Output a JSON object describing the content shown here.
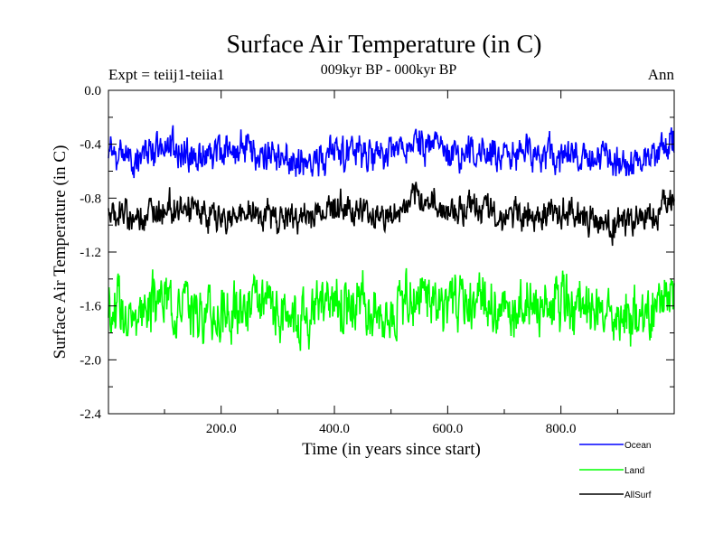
{
  "chart_data": {
    "type": "line",
    "title": "Surface Air Temperature (in C)",
    "subtitle": "009kyr BP - 000kyr BP",
    "left_label": "Expt = teiij1-teiia1",
    "right_label": "Ann",
    "xlabel": "Time (in years since start)",
    "ylabel": "Surface Air Temperature (in C)",
    "xlim": [
      1,
      1000
    ],
    "ylim": [
      -2.4,
      0.0
    ],
    "x_ticks": [
      200,
      400,
      600,
      800
    ],
    "x_tick_labels": [
      "200.0",
      "400.0",
      "600.0",
      "800.0"
    ],
    "y_ticks": [
      0.0,
      -0.4,
      -0.8,
      -1.2,
      -1.6,
      -2.0,
      -2.4
    ],
    "y_tick_labels": [
      "0.0",
      "-0.4",
      "-0.8",
      "-1.2",
      "-1.6",
      "-2.0",
      "-2.4"
    ],
    "grid": false,
    "legend_position": "bottom-right, below plot",
    "series": [
      {
        "name": "Ocean",
        "color": "#0000ff",
        "x": [
          1,
          50,
          100,
          150,
          200,
          250,
          300,
          350,
          400,
          450,
          500,
          550,
          600,
          650,
          700,
          750,
          800,
          850,
          900,
          950,
          1000
        ],
        "values": [
          -0.45,
          -0.5,
          -0.4,
          -0.5,
          -0.45,
          -0.45,
          -0.5,
          -0.55,
          -0.45,
          -0.5,
          -0.45,
          -0.4,
          -0.45,
          -0.45,
          -0.5,
          -0.45,
          -0.5,
          -0.5,
          -0.55,
          -0.5,
          -0.4
        ]
      },
      {
        "name": "Land",
        "color": "#00ff00",
        "x": [
          1,
          50,
          100,
          150,
          200,
          250,
          300,
          350,
          400,
          450,
          500,
          550,
          600,
          650,
          700,
          750,
          800,
          850,
          900,
          950,
          1000
        ],
        "values": [
          -1.6,
          -1.65,
          -1.55,
          -1.6,
          -1.7,
          -1.6,
          -1.65,
          -1.65,
          -1.55,
          -1.6,
          -1.65,
          -1.5,
          -1.6,
          -1.55,
          -1.65,
          -1.6,
          -1.6,
          -1.65,
          -1.7,
          -1.65,
          -1.5
        ]
      },
      {
        "name": "AllSurf",
        "color": "#000000",
        "x": [
          1,
          50,
          100,
          150,
          200,
          250,
          300,
          350,
          400,
          450,
          500,
          550,
          600,
          650,
          700,
          750,
          800,
          850,
          900,
          950,
          1000
        ],
        "values": [
          -0.9,
          -0.95,
          -0.85,
          -0.9,
          -0.95,
          -0.9,
          -0.95,
          -0.95,
          -0.85,
          -0.9,
          -0.95,
          -0.8,
          -0.9,
          -0.85,
          -0.95,
          -0.9,
          -0.9,
          -0.95,
          -1.0,
          -0.95,
          -0.8
        ]
      }
    ]
  }
}
